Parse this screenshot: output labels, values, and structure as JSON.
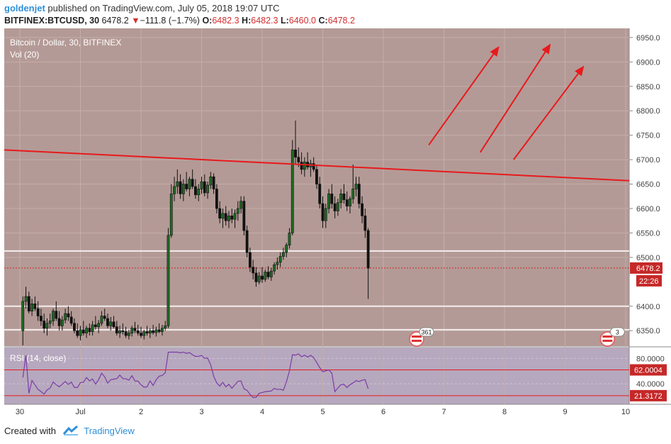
{
  "header": {
    "user": "goldenjet",
    "published_text": "published on TradingView.com, July 05, 2018 19:07 UTC",
    "symbol": "BITFINEX:BTCUSD, 30",
    "last": "6478.2",
    "change_arrow": "▼",
    "change": "−111.8 (−1.7%)",
    "o_label": "O:",
    "o": "6482.3",
    "h_label": "H:",
    "h": "6482.3",
    "l_label": "L:",
    "l": "6460.0",
    "c_label": "C:",
    "c": "6478.2"
  },
  "footer": {
    "created_with": "Created with",
    "brand": "TradingView"
  },
  "colors": {
    "pane_bg": "#b49a96",
    "rsi_bg": "#b6a8be",
    "up": "#1e6b24",
    "down": "#111111",
    "trend": "#e8191c",
    "level": "#f4eeee",
    "rsi_line": "#7b3ba6",
    "price_badge": "#c62828"
  },
  "chart_data": {
    "type": "candlestick",
    "title": "Bitcoin / Dollar, 30, BITFINEX",
    "volume_label": "Vol (20)",
    "x_ticks": [
      "30",
      "Jul",
      "2",
      "3",
      "4",
      "5",
      "6",
      "7",
      "8",
      "9",
      "10"
    ],
    "y_ticks": [
      "6950.0",
      "6900.0",
      "6850.0",
      "6800.0",
      "6750.0",
      "6700.0",
      "6650.0",
      "6600.0",
      "6550.0",
      "6500.0",
      "6400.0",
      "6350.0"
    ],
    "ylim": [
      6330,
      6960
    ],
    "last_price": "6478.2",
    "countdown": "22:26",
    "x_range_days": [
      0,
      10
    ],
    "candles": [
      [
        0.05,
        6350,
        6420,
        6320,
        6410
      ],
      [
        0.1,
        6410,
        6440,
        6395,
        6420
      ],
      [
        0.15,
        6420,
        6430,
        6385,
        6390
      ],
      [
        0.2,
        6390,
        6415,
        6380,
        6405
      ],
      [
        0.25,
        6405,
        6420,
        6390,
        6395
      ],
      [
        0.3,
        6395,
        6410,
        6370,
        6380
      ],
      [
        0.35,
        6380,
        6395,
        6360,
        6370
      ],
      [
        0.4,
        6370,
        6385,
        6345,
        6355
      ],
      [
        0.45,
        6355,
        6375,
        6340,
        6365
      ],
      [
        0.5,
        6365,
        6385,
        6355,
        6370
      ],
      [
        0.55,
        6370,
        6395,
        6360,
        6390
      ],
      [
        0.6,
        6390,
        6410,
        6370,
        6375
      ],
      [
        0.65,
        6375,
        6390,
        6350,
        6360
      ],
      [
        0.7,
        6360,
        6380,
        6350,
        6372
      ],
      [
        0.75,
        6372,
        6395,
        6365,
        6385
      ],
      [
        0.8,
        6385,
        6400,
        6370,
        6378
      ],
      [
        0.85,
        6378,
        6390,
        6360,
        6365
      ],
      [
        0.9,
        6365,
        6375,
        6345,
        6350
      ],
      [
        0.95,
        6350,
        6365,
        6335,
        6340
      ],
      [
        1.0,
        6340,
        6360,
        6330,
        6352
      ],
      [
        1.05,
        6352,
        6370,
        6340,
        6345
      ],
      [
        1.1,
        6345,
        6360,
        6335,
        6355
      ],
      [
        1.15,
        6355,
        6365,
        6340,
        6348
      ],
      [
        1.2,
        6348,
        6370,
        6340,
        6362
      ],
      [
        1.25,
        6362,
        6380,
        6352,
        6358
      ],
      [
        1.3,
        6358,
        6372,
        6345,
        6365
      ],
      [
        1.35,
        6365,
        6390,
        6360,
        6380
      ],
      [
        1.4,
        6380,
        6395,
        6370,
        6375
      ],
      [
        1.45,
        6375,
        6385,
        6355,
        6360
      ],
      [
        1.5,
        6360,
        6378,
        6350,
        6368
      ],
      [
        1.55,
        6368,
        6380,
        6355,
        6358
      ],
      [
        1.6,
        6358,
        6370,
        6340,
        6345
      ],
      [
        1.65,
        6345,
        6360,
        6335,
        6350
      ],
      [
        1.7,
        6350,
        6365,
        6342,
        6348
      ],
      [
        1.75,
        6348,
        6358,
        6335,
        6340
      ],
      [
        1.8,
        6340,
        6352,
        6332,
        6345
      ],
      [
        1.85,
        6345,
        6360,
        6338,
        6355
      ],
      [
        1.9,
        6355,
        6368,
        6345,
        6350
      ],
      [
        1.95,
        6350,
        6362,
        6340,
        6345
      ],
      [
        2.0,
        6345,
        6358,
        6335,
        6340
      ],
      [
        2.05,
        6340,
        6352,
        6332,
        6348
      ],
      [
        2.1,
        6348,
        6360,
        6340,
        6345
      ],
      [
        2.15,
        6345,
        6355,
        6335,
        6350
      ],
      [
        2.2,
        6350,
        6362,
        6342,
        6346
      ],
      [
        2.25,
        6346,
        6358,
        6338,
        6352
      ],
      [
        2.3,
        6352,
        6365,
        6345,
        6348
      ],
      [
        2.35,
        6348,
        6362,
        6340,
        6355
      ],
      [
        2.4,
        6355,
        6370,
        6350,
        6360
      ],
      [
        2.45,
        6360,
        6560,
        6355,
        6545
      ],
      [
        2.5,
        6545,
        6650,
        6540,
        6630
      ],
      [
        2.55,
        6630,
        6665,
        6615,
        6645
      ],
      [
        2.6,
        6645,
        6680,
        6630,
        6655
      ],
      [
        2.65,
        6655,
        6670,
        6620,
        6630
      ],
      [
        2.7,
        6630,
        6660,
        6615,
        6650
      ],
      [
        2.75,
        6650,
        6675,
        6635,
        6640
      ],
      [
        2.8,
        6640,
        6665,
        6625,
        6660
      ],
      [
        2.85,
        6660,
        6680,
        6640,
        6645
      ],
      [
        2.9,
        6645,
        6660,
        6620,
        6628
      ],
      [
        2.95,
        6628,
        6650,
        6615,
        6640
      ],
      [
        3.0,
        6640,
        6665,
        6630,
        6655
      ],
      [
        3.05,
        6655,
        6670,
        6625,
        6632
      ],
      [
        3.1,
        6632,
        6655,
        6620,
        6648
      ],
      [
        3.15,
        6648,
        6675,
        6640,
        6665
      ],
      [
        3.2,
        6665,
        6672,
        6630,
        6640
      ],
      [
        3.25,
        6640,
        6650,
        6590,
        6600
      ],
      [
        3.3,
        6600,
        6615,
        6570,
        6580
      ],
      [
        3.35,
        6580,
        6600,
        6560,
        6590
      ],
      [
        3.4,
        6590,
        6605,
        6565,
        6575
      ],
      [
        3.45,
        6575,
        6595,
        6560,
        6585
      ],
      [
        3.5,
        6585,
        6600,
        6570,
        6578
      ],
      [
        3.55,
        6578,
        6598,
        6560,
        6590
      ],
      [
        3.6,
        6590,
        6615,
        6575,
        6600
      ],
      [
        3.65,
        6600,
        6625,
        6590,
        6615
      ],
      [
        3.7,
        6615,
        6625,
        6545,
        6555
      ],
      [
        3.75,
        6555,
        6565,
        6500,
        6510
      ],
      [
        3.8,
        6510,
        6520,
        6470,
        6480
      ],
      [
        3.85,
        6480,
        6495,
        6455,
        6468
      ],
      [
        3.9,
        6468,
        6480,
        6440,
        6450
      ],
      [
        3.95,
        6450,
        6470,
        6445,
        6462
      ],
      [
        4.0,
        6462,
        6480,
        6448,
        6455
      ],
      [
        4.05,
        6455,
        6475,
        6450,
        6470
      ],
      [
        4.1,
        6470,
        6482,
        6455,
        6460
      ],
      [
        4.15,
        6460,
        6478,
        6452,
        6472
      ],
      [
        4.2,
        6472,
        6490,
        6465,
        6485
      ],
      [
        4.25,
        6485,
        6500,
        6475,
        6490
      ],
      [
        4.3,
        6490,
        6510,
        6480,
        6502
      ],
      [
        4.35,
        6502,
        6520,
        6495,
        6510
      ],
      [
        4.4,
        6510,
        6530,
        6500,
        6525
      ],
      [
        4.45,
        6525,
        6560,
        6518,
        6550
      ],
      [
        4.5,
        6550,
        6740,
        6545,
        6720
      ],
      [
        4.55,
        6720,
        6780,
        6690,
        6705
      ],
      [
        4.6,
        6705,
        6725,
        6685,
        6695
      ],
      [
        4.65,
        6695,
        6715,
        6670,
        6680
      ],
      [
        4.7,
        6680,
        6705,
        6665,
        6695
      ],
      [
        4.75,
        6695,
        6715,
        6680,
        6685
      ],
      [
        4.8,
        6685,
        6700,
        6665,
        6692
      ],
      [
        4.85,
        6692,
        6705,
        6675,
        6680
      ],
      [
        4.9,
        6680,
        6690,
        6640,
        6650
      ],
      [
        4.95,
        6650,
        6665,
        6600,
        6610
      ],
      [
        5.0,
        6610,
        6625,
        6560,
        6575
      ],
      [
        5.05,
        6575,
        6610,
        6560,
        6600
      ],
      [
        5.1,
        6600,
        6640,
        6590,
        6630
      ],
      [
        5.15,
        6630,
        6650,
        6600,
        6610
      ],
      [
        5.2,
        6610,
        6625,
        6580,
        6595
      ],
      [
        5.25,
        6595,
        6620,
        6585,
        6612
      ],
      [
        5.3,
        6612,
        6640,
        6600,
        6630
      ],
      [
        5.35,
        6630,
        6650,
        6610,
        6618
      ],
      [
        5.4,
        6618,
        6635,
        6595,
        6605
      ],
      [
        5.45,
        6605,
        6625,
        6590,
        6620
      ],
      [
        5.5,
        6620,
        6690,
        6610,
        6640
      ],
      [
        5.55,
        6640,
        6665,
        6625,
        6650
      ],
      [
        5.6,
        6650,
        6665,
        6600,
        6610
      ],
      [
        5.65,
        6610,
        6625,
        6570,
        6585
      ],
      [
        5.7,
        6585,
        6600,
        6540,
        6555
      ],
      [
        5.75,
        6555,
        6560,
        6415,
        6478
      ]
    ]
  },
  "rsi_data": {
    "label": "RSI (14, close)",
    "y_ticks": [
      "80.0000",
      "40.0000"
    ],
    "ylim": [
      10,
      95
    ],
    "upper_level": 62.0004,
    "upper_label": "62.0004",
    "current_label": "21.3172",
    "current_value": 21.3172
  },
  "events": [
    {
      "label": "361",
      "at_day": 6.55
    },
    {
      "label": "3",
      "at_day": 9.7
    }
  ]
}
